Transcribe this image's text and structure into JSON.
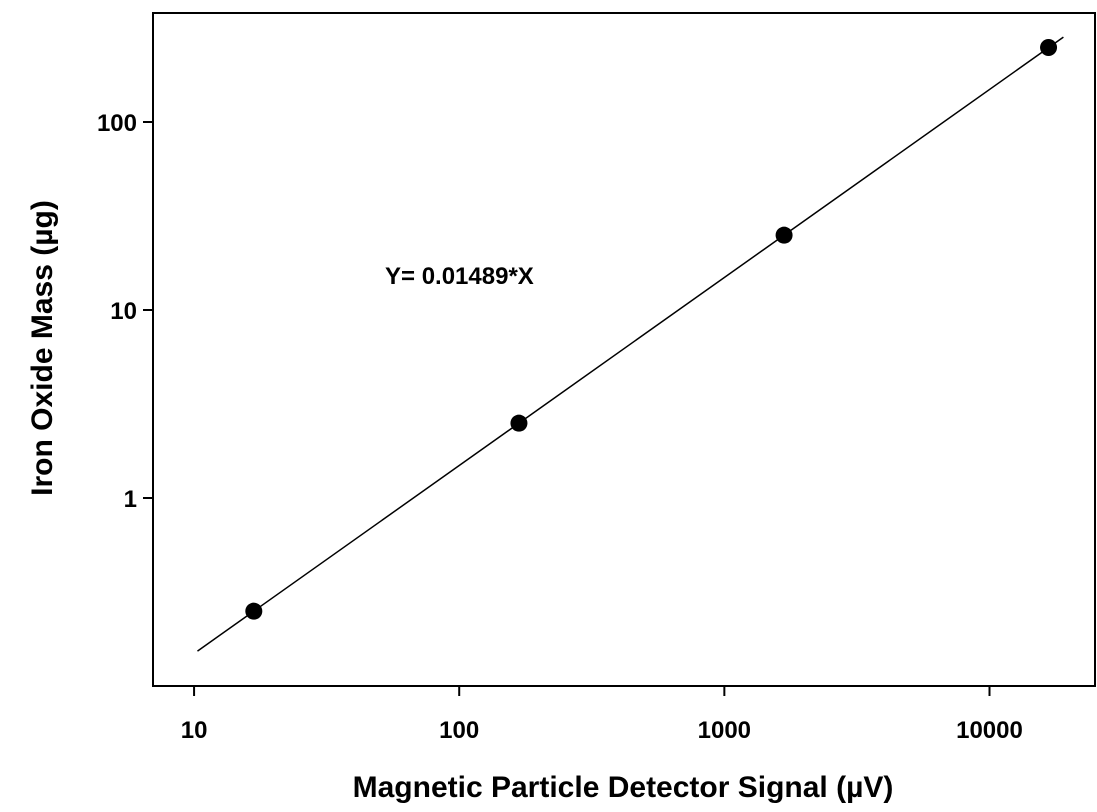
{
  "chart_data": {
    "type": "scatter",
    "title": "",
    "xlabel": "Magnetic Particle Detector Signal (µV)",
    "ylabel": "Iron Oxide Mass (µg)",
    "xscale": "log",
    "yscale": "log",
    "xlim": [
      7,
      25000
    ],
    "ylim": [
      0.1,
      380
    ],
    "xticks": [
      10,
      100,
      1000,
      10000
    ],
    "xtick_labels": [
      "10",
      "100",
      "1000",
      "10000"
    ],
    "yticks": [
      1,
      10,
      100
    ],
    "ytick_labels": [
      "1",
      "10",
      "100"
    ],
    "grid": false,
    "series": [
      {
        "x": [
          16.8,
          168,
          1680,
          16700
        ],
        "y": [
          0.25,
          2.5,
          25,
          249
        ]
      }
    ],
    "fit": {
      "slope": 0.01489,
      "x_range": [
        10.3,
        19000
      ],
      "label": "Y= 0.01489*X"
    },
    "colors": {
      "points": "#000000",
      "line": "#000000",
      "axes": "#000000"
    }
  }
}
